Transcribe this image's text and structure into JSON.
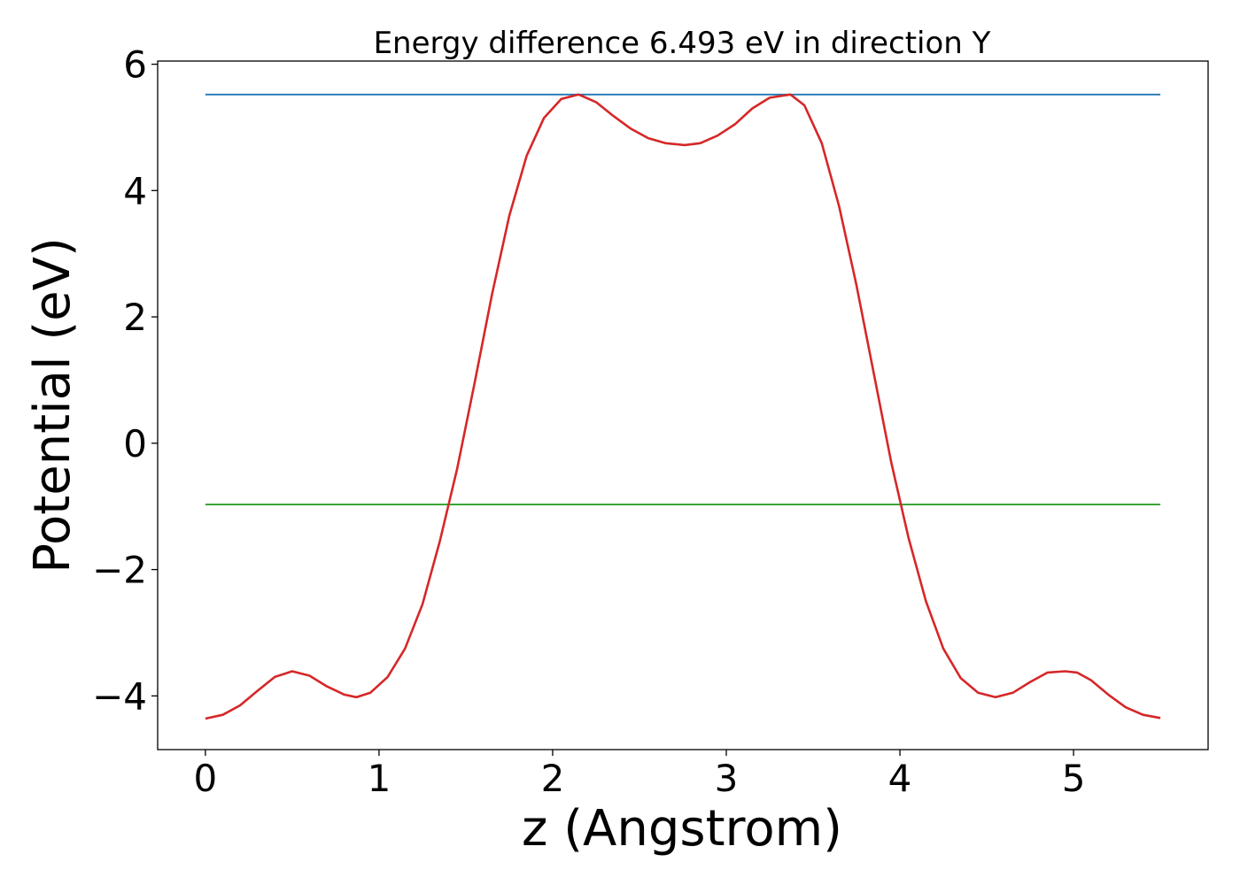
{
  "chart_data": {
    "type": "line",
    "title": "Energy difference 6.493 eV in direction Y",
    "xlabel": "z (Angstrom)",
    "ylabel": "Potential (eV)",
    "xlim": [
      -0.275,
      5.775
    ],
    "ylim": [
      -4.85,
      6.05
    ],
    "xticks": [
      0,
      1,
      2,
      3,
      4,
      5
    ],
    "yticks": [
      -4,
      -2,
      0,
      2,
      4,
      6
    ],
    "grid": false,
    "legend": "none",
    "series": [
      {
        "color": "#1f77b4",
        "x": [
          0,
          5.5
        ],
        "y": [
          5.52,
          5.52
        ]
      },
      {
        "color": "#2ca02c",
        "x": [
          0,
          5.5
        ],
        "y": [
          -0.97,
          -0.97
        ]
      },
      {
        "color": "#d62728",
        "x": [
          0,
          0.1,
          0.2,
          0.3,
          0.4,
          0.5,
          0.6,
          0.7,
          0.8,
          0.87,
          0.95,
          1.05,
          1.15,
          1.25,
          1.35,
          1.45,
          1.55,
          1.65,
          1.75,
          1.85,
          1.95,
          2.05,
          2.15,
          2.25,
          2.35,
          2.45,
          2.55,
          2.65,
          2.76,
          2.85,
          2.95,
          3.05,
          3.15,
          3.25,
          3.37,
          3.45,
          3.55,
          3.65,
          3.75,
          3.85,
          3.95,
          4.05,
          4.15,
          4.25,
          4.35,
          4.45,
          4.55,
          4.65,
          4.75,
          4.85,
          4.95,
          5.02,
          5.1,
          5.2,
          5.3,
          5.4,
          5.5
        ],
        "y": [
          -4.36,
          -4.3,
          -4.15,
          -3.92,
          -3.7,
          -3.61,
          -3.68,
          -3.85,
          -3.98,
          -4.02,
          -3.95,
          -3.7,
          -3.25,
          -2.55,
          -1.55,
          -0.4,
          0.95,
          2.35,
          3.6,
          4.55,
          5.15,
          5.45,
          5.52,
          5.4,
          5.18,
          4.98,
          4.83,
          4.75,
          4.72,
          4.75,
          4.87,
          5.05,
          5.3,
          5.47,
          5.52,
          5.35,
          4.75,
          3.75,
          2.5,
          1.1,
          -0.3,
          -1.5,
          -2.5,
          -3.25,
          -3.72,
          -3.95,
          -4.02,
          -3.95,
          -3.78,
          -3.63,
          -3.61,
          -3.63,
          -3.75,
          -3.98,
          -4.18,
          -4.3,
          -4.35
        ]
      }
    ]
  }
}
